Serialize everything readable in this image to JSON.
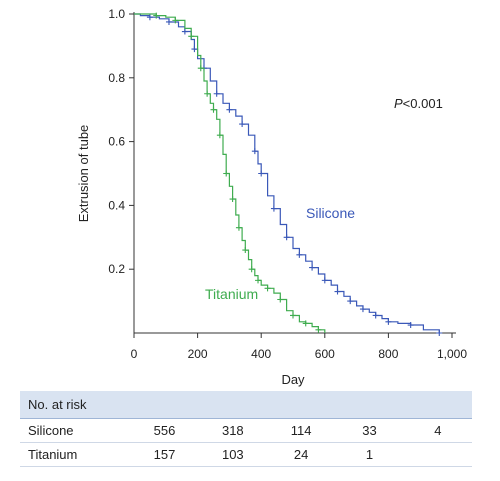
{
  "chart_data": {
    "type": "line",
    "subtype": "kaplan-meier",
    "xlabel": "Day",
    "ylabel": "Extrusion of tube",
    "xlim": [
      0,
      1000
    ],
    "ylim": [
      0,
      1.0
    ],
    "x_ticks": [
      "0",
      "200",
      "400",
      "600",
      "800",
      "1,000"
    ],
    "y_ticks": [
      "0.2",
      "0.4",
      "0.6",
      "0.8",
      "1.0"
    ],
    "annotation": {
      "p_italic": "P",
      "p_rest": "<0.001"
    },
    "grid": false,
    "series": [
      {
        "name": "Silicone",
        "color": "#3a58b8",
        "points": [
          [
            0,
            1.0
          ],
          [
            20,
            0.995
          ],
          [
            50,
            0.99
          ],
          [
            80,
            0.985
          ],
          [
            110,
            0.975
          ],
          [
            140,
            0.96
          ],
          [
            160,
            0.945
          ],
          [
            180,
            0.92
          ],
          [
            190,
            0.89
          ],
          [
            200,
            0.86
          ],
          [
            220,
            0.83
          ],
          [
            240,
            0.79
          ],
          [
            260,
            0.75
          ],
          [
            280,
            0.72
          ],
          [
            300,
            0.7
          ],
          [
            320,
            0.68
          ],
          [
            340,
            0.655
          ],
          [
            360,
            0.62
          ],
          [
            380,
            0.57
          ],
          [
            390,
            0.53
          ],
          [
            400,
            0.5
          ],
          [
            420,
            0.43
          ],
          [
            440,
            0.39
          ],
          [
            460,
            0.34
          ],
          [
            480,
            0.3
          ],
          [
            500,
            0.265
          ],
          [
            520,
            0.245
          ],
          [
            540,
            0.225
          ],
          [
            560,
            0.205
          ],
          [
            580,
            0.185
          ],
          [
            600,
            0.165
          ],
          [
            620,
            0.15
          ],
          [
            640,
            0.13
          ],
          [
            660,
            0.115
          ],
          [
            680,
            0.1
          ],
          [
            700,
            0.085
          ],
          [
            720,
            0.075
          ],
          [
            740,
            0.065
          ],
          [
            760,
            0.055
          ],
          [
            780,
            0.045
          ],
          [
            800,
            0.035
          ],
          [
            830,
            0.03
          ],
          [
            870,
            0.025
          ],
          [
            910,
            0.01
          ],
          [
            960,
            0.0
          ]
        ]
      },
      {
        "name": "Titanium",
        "color": "#3fac4f",
        "points": [
          [
            0,
            1.0
          ],
          [
            30,
            1.0
          ],
          [
            70,
            0.995
          ],
          [
            100,
            0.99
          ],
          [
            130,
            0.98
          ],
          [
            160,
            0.955
          ],
          [
            180,
            0.93
          ],
          [
            200,
            0.87
          ],
          [
            210,
            0.83
          ],
          [
            220,
            0.79
          ],
          [
            230,
            0.75
          ],
          [
            240,
            0.72
          ],
          [
            250,
            0.7
          ],
          [
            260,
            0.67
          ],
          [
            270,
            0.62
          ],
          [
            280,
            0.56
          ],
          [
            290,
            0.5
          ],
          [
            300,
            0.46
          ],
          [
            310,
            0.42
          ],
          [
            320,
            0.37
          ],
          [
            330,
            0.33
          ],
          [
            340,
            0.29
          ],
          [
            350,
            0.26
          ],
          [
            360,
            0.23
          ],
          [
            370,
            0.2
          ],
          [
            380,
            0.18
          ],
          [
            390,
            0.165
          ],
          [
            400,
            0.15
          ],
          [
            420,
            0.14
          ],
          [
            440,
            0.125
          ],
          [
            460,
            0.105
          ],
          [
            480,
            0.07
          ],
          [
            500,
            0.055
          ],
          [
            520,
            0.035
          ],
          [
            540,
            0.03
          ],
          [
            560,
            0.02
          ],
          [
            580,
            0.01
          ],
          [
            600,
            0.0
          ]
        ]
      }
    ]
  },
  "risk_table": {
    "header": "No. at risk",
    "rows": [
      {
        "label": "Silicone",
        "values": [
          "556",
          "318",
          "114",
          "33",
          "4"
        ]
      },
      {
        "label": "Titanium",
        "values": [
          "157",
          "103",
          "24",
          "1",
          ""
        ]
      }
    ]
  }
}
